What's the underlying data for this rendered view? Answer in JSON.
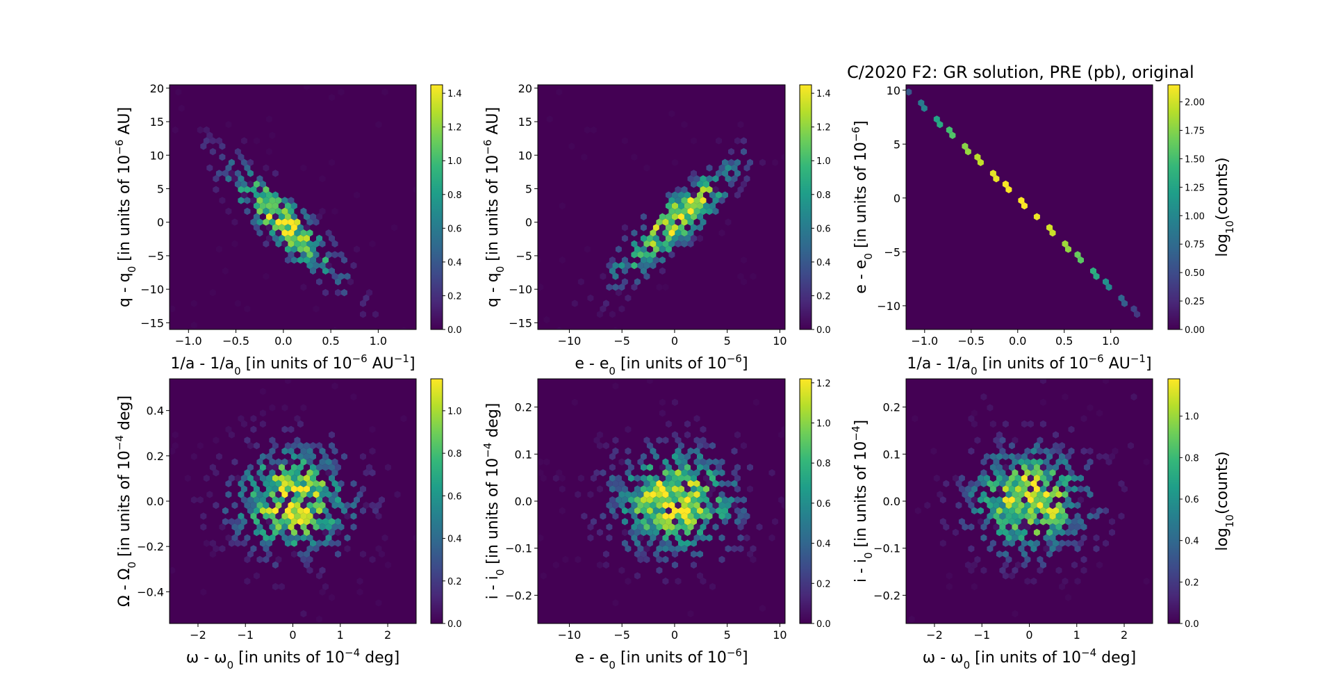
{
  "figure": {
    "title": "C/2020 F2: GR solution, PRE (pb), original"
  },
  "colors": {
    "viridis": [
      "#440154",
      "#482878",
      "#3e4989",
      "#31688e",
      "#26828e",
      "#1f9e89",
      "#35b779",
      "#6ece58",
      "#b5de2b",
      "#fde725"
    ],
    "background": "#440154"
  },
  "chart_data": [
    {
      "type": "heatmap",
      "subtype": "hexbin",
      "xlabel": "1/a - 1/a0 [in units of 10^-6 AU^-1]",
      "ylabel": "q - q0 [in units of 10^-6 AU]",
      "xlim": [
        -1.2,
        1.4
      ],
      "ylim": [
        -16,
        20.5
      ],
      "xticks": [
        -1.0,
        -0.5,
        0.0,
        0.5,
        1.0
      ],
      "xticklabels": [
        "−1.0",
        "−0.5",
        "0.0",
        "0.5",
        "1.0"
      ],
      "yticks": [
        -15,
        -10,
        -5,
        0,
        5,
        10,
        15,
        20
      ],
      "yticklabels": [
        "−15",
        "−10",
        "−5",
        "0",
        "5",
        "10",
        "15",
        "20"
      ],
      "distribution": {
        "x_center": 0.0,
        "y_center": 0.0,
        "x_sigma": 0.42,
        "y_sigma": 6.0,
        "correlation": -0.88
      },
      "colorbar": {
        "label": "",
        "range": [
          0,
          1.45
        ],
        "ticks": [
          0.0,
          0.2,
          0.4,
          0.6,
          0.8,
          1.0,
          1.2,
          1.4
        ],
        "ticklabels": [
          "0.0",
          "0.2",
          "0.4",
          "0.6",
          "0.8",
          "1.0",
          "1.2",
          "1.4"
        ]
      }
    },
    {
      "type": "heatmap",
      "subtype": "hexbin",
      "xlabel": "e - e0 [in units of 10^-6]",
      "ylabel": "q - q0 [in units of 10^-6 AU]",
      "xlim": [
        -13,
        10.5
      ],
      "ylim": [
        -16,
        20.5
      ],
      "xticks": [
        -10,
        -5,
        0,
        5,
        10
      ],
      "xticklabels": [
        "−10",
        "−5",
        "0",
        "5",
        "10"
      ],
      "yticks": [
        -15,
        -10,
        -5,
        0,
        5,
        10,
        15,
        20
      ],
      "yticklabels": [
        "−15",
        "−10",
        "−5",
        "0",
        "5",
        "10",
        "15",
        "20"
      ],
      "distribution": {
        "x_center": 0.0,
        "y_center": 0.0,
        "x_sigma": 4.0,
        "y_sigma": 6.0,
        "correlation": 0.88
      },
      "colorbar": {
        "label": "",
        "range": [
          0,
          1.45
        ],
        "ticks": [
          0.0,
          0.2,
          0.4,
          0.6,
          0.8,
          1.0,
          1.2,
          1.4
        ],
        "ticklabels": [
          "0.0",
          "0.2",
          "0.4",
          "0.6",
          "0.8",
          "1.0",
          "1.2",
          "1.4"
        ]
      }
    },
    {
      "type": "heatmap",
      "subtype": "hexbin",
      "xlabel": "1/a - 1/a0 [in units of 10^-6 AU^-1]",
      "ylabel": "e - e0 [in units of 10^-6]",
      "xlim": [
        -1.2,
        1.45
      ],
      "ylim": [
        -12.2,
        10.5
      ],
      "xticks": [
        -1.0,
        -0.5,
        0.0,
        0.5,
        1.0
      ],
      "xticklabels": [
        "−1.0",
        "−0.5",
        "0.0",
        "0.5",
        "1.0"
      ],
      "yticks": [
        -10,
        -5,
        0,
        5,
        10
      ],
      "yticklabels": [
        "−10",
        "−5",
        "0",
        "5",
        "10"
      ],
      "line_relation": {
        "slope": -8.4,
        "from_x": -1.2,
        "to_x": 1.35
      },
      "distribution": {
        "x_center": 0.0,
        "x_sigma": 0.42
      },
      "colorbar": {
        "label": "log10(counts)",
        "range": [
          0,
          2.15
        ],
        "ticks": [
          0.0,
          0.25,
          0.5,
          0.75,
          1.0,
          1.25,
          1.5,
          1.75,
          2.0
        ],
        "ticklabels": [
          "0.00",
          "0.25",
          "0.50",
          "0.75",
          "1.00",
          "1.25",
          "1.50",
          "1.75",
          "2.00"
        ]
      }
    },
    {
      "type": "heatmap",
      "subtype": "hexbin",
      "xlabel": "ω - ω0 [in units of 10^-4 deg]",
      "ylabel": "Ω - Ω0 [in units of 10^-4 deg]",
      "xlim": [
        -2.6,
        2.6
      ],
      "ylim": [
        -0.54,
        0.54
      ],
      "xticks": [
        -2,
        -1,
        0,
        1,
        2
      ],
      "xticklabels": [
        "−2",
        "−1",
        "0",
        "1",
        "2"
      ],
      "yticks": [
        -0.4,
        -0.2,
        0.0,
        0.2,
        0.4
      ],
      "yticklabels": [
        "−0.4",
        "−0.2",
        "0.0",
        "0.2",
        "0.4"
      ],
      "distribution": {
        "x_center": 0.0,
        "y_center": 0.0,
        "x_sigma": 0.85,
        "y_sigma": 0.16,
        "correlation": 0.0
      },
      "colorbar": {
        "label": "",
        "range": [
          0,
          1.15
        ],
        "ticks": [
          0.0,
          0.2,
          0.4,
          0.6,
          0.8,
          1.0
        ],
        "ticklabels": [
          "0.0",
          "0.2",
          "0.4",
          "0.6",
          "0.8",
          "1.0"
        ]
      }
    },
    {
      "type": "heatmap",
      "subtype": "hexbin",
      "xlabel": "e - e0 [in units of 10^-6]",
      "ylabel": "i - i0 [in units of 10^-4 deg]",
      "xlim": [
        -13,
        10.5
      ],
      "ylim": [
        -0.26,
        0.26
      ],
      "xticks": [
        -10,
        -5,
        0,
        5,
        10
      ],
      "xticklabels": [
        "−10",
        "−5",
        "0",
        "5",
        "10"
      ],
      "yticks": [
        -0.2,
        -0.1,
        0.0,
        0.1,
        0.2
      ],
      "yticklabels": [
        "−0.2",
        "−0.1",
        "0.0",
        "0.1",
        "0.2"
      ],
      "distribution": {
        "x_center": 0.0,
        "y_center": 0.0,
        "x_sigma": 4.0,
        "y_sigma": 0.075,
        "correlation": 0.0
      },
      "colorbar": {
        "label": "",
        "range": [
          0,
          1.22
        ],
        "ticks": [
          0.0,
          0.2,
          0.4,
          0.6,
          0.8,
          1.0,
          1.2
        ],
        "ticklabels": [
          "0.0",
          "0.2",
          "0.4",
          "0.6",
          "0.8",
          "1.0",
          "1.2"
        ]
      }
    },
    {
      "type": "heatmap",
      "subtype": "hexbin",
      "xlabel": "ω - ω0 [in units of 10^-4 deg]",
      "ylabel": "i - i0 [in units of 10^-4]",
      "xlim": [
        -2.6,
        2.6
      ],
      "ylim": [
        -0.26,
        0.26
      ],
      "xticks": [
        -2,
        -1,
        0,
        1,
        2
      ],
      "xticklabels": [
        "−2",
        "−1",
        "0",
        "1",
        "2"
      ],
      "yticks": [
        -0.2,
        -0.1,
        0.0,
        0.1,
        0.2
      ],
      "yticklabels": [
        "−0.2",
        "−0.1",
        "0.0",
        "0.1",
        "0.2"
      ],
      "distribution": {
        "x_center": 0.0,
        "y_center": 0.0,
        "x_sigma": 0.85,
        "y_sigma": 0.075,
        "correlation": 0.0
      },
      "colorbar": {
        "label": "log10(counts)",
        "range": [
          0,
          1.18
        ],
        "ticks": [
          0.0,
          0.2,
          0.4,
          0.6,
          0.8,
          1.0
        ],
        "ticklabels": [
          "0.0",
          "0.2",
          "0.4",
          "0.6",
          "0.8",
          "1.0"
        ]
      }
    }
  ]
}
